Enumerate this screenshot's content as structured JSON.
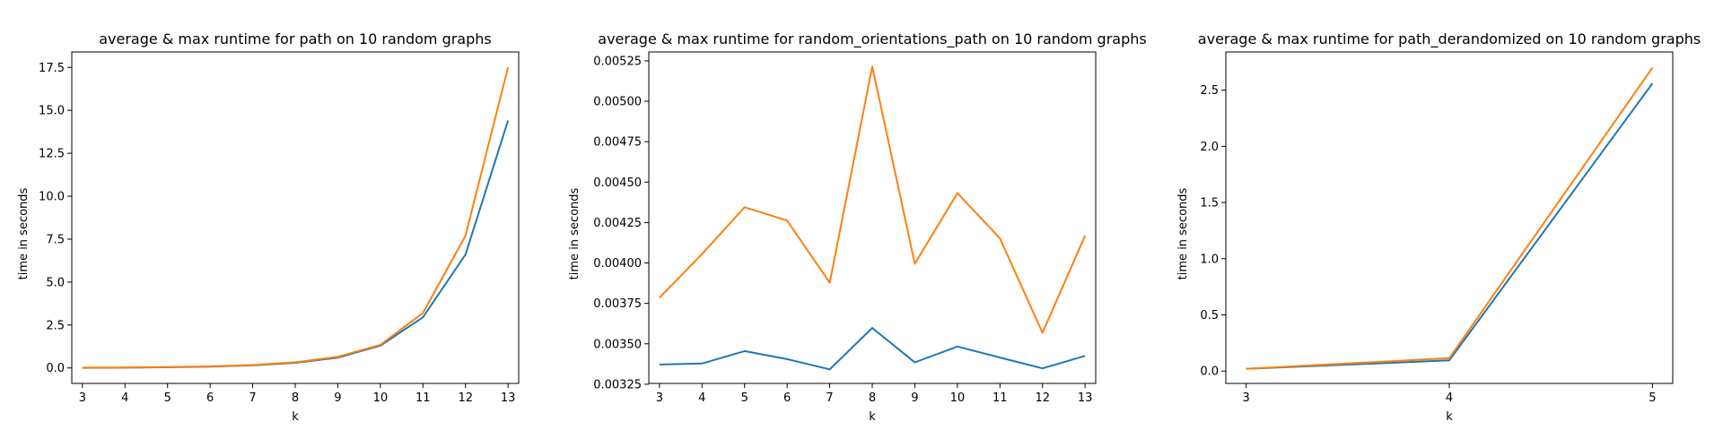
{
  "chart_data": [
    {
      "type": "line",
      "title": "average & max runtime for path on 10 random graphs",
      "xlabel": "k",
      "ylabel": "time in seconds",
      "xlim": [
        2.75,
        13.25
      ],
      "ylim": [
        -0.9,
        18.4
      ],
      "xticks": [
        3,
        4,
        5,
        6,
        7,
        8,
        9,
        10,
        11,
        12,
        13
      ],
      "xtick_labels": [
        "3",
        "4",
        "5",
        "6",
        "7",
        "8",
        "9",
        "10",
        "11",
        "12",
        "13"
      ],
      "yticks": [
        0.0,
        2.5,
        5.0,
        7.5,
        10.0,
        12.5,
        15.0,
        17.5
      ],
      "ytick_labels": [
        "0.0",
        "2.5",
        "5.0",
        "7.5",
        "10.0",
        "12.5",
        "15.0",
        "17.5"
      ],
      "x": [
        3,
        4,
        5,
        6,
        7,
        8,
        9,
        10,
        11,
        12,
        13
      ],
      "series": [
        {
          "color": "#1f77b4",
          "values": [
            0.01,
            0.02,
            0.04,
            0.08,
            0.15,
            0.3,
            0.6,
            1.3,
            2.95,
            6.6,
            14.4
          ]
        },
        {
          "color": "#ff7f0e",
          "values": [
            0.02,
            0.03,
            0.05,
            0.09,
            0.17,
            0.33,
            0.65,
            1.35,
            3.2,
            7.7,
            17.5
          ]
        }
      ],
      "grid": false
    },
    {
      "type": "line",
      "title": "average & max runtime for random_orientations_path on 10 random graphs",
      "xlabel": "k",
      "ylabel": "time in seconds",
      "xlim": [
        2.75,
        13.25
      ],
      "ylim": [
        0.003255,
        0.005305
      ],
      "xticks": [
        3,
        4,
        5,
        6,
        7,
        8,
        9,
        10,
        11,
        12,
        13
      ],
      "xtick_labels": [
        "3",
        "4",
        "5",
        "6",
        "7",
        "8",
        "9",
        "10",
        "11",
        "12",
        "13"
      ],
      "yticks": [
        0.00325,
        0.0035,
        0.00375,
        0.004,
        0.00425,
        0.0045,
        0.00475,
        0.005,
        0.00525
      ],
      "ytick_labels": [
        "0.00325",
        "0.00350",
        "0.00375",
        "0.00400",
        "0.00425",
        "0.00450",
        "0.00475",
        "0.00500",
        "0.00525"
      ],
      "x": [
        3,
        4,
        5,
        6,
        7,
        8,
        9,
        10,
        11,
        12,
        13
      ],
      "series": [
        {
          "color": "#1f77b4",
          "values": [
            0.003372,
            0.003378,
            0.003455,
            0.003405,
            0.003342,
            0.003598,
            0.003385,
            0.003483,
            0.003415,
            0.003348,
            0.003425
          ]
        },
        {
          "color": "#ff7f0e",
          "values": [
            0.003785,
            0.004055,
            0.004345,
            0.004262,
            0.003878,
            0.005215,
            0.003995,
            0.004432,
            0.004152,
            0.003568,
            0.004168
          ]
        }
      ],
      "grid": false
    },
    {
      "type": "line",
      "title": "average & max runtime for path_derandomized on 10 random graphs",
      "xlabel": "k",
      "ylabel": "time in seconds",
      "xlim": [
        2.9,
        5.1
      ],
      "ylim": [
        -0.11,
        2.84
      ],
      "xticks": [
        3,
        4,
        5
      ],
      "xtick_labels": [
        "3",
        "4",
        "5"
      ],
      "yticks": [
        0.0,
        0.5,
        1.0,
        1.5,
        2.0,
        2.5
      ],
      "ytick_labels": [
        "0.0",
        "0.5",
        "1.0",
        "1.5",
        "2.0",
        "2.5"
      ],
      "x": [
        3,
        4,
        5
      ],
      "series": [
        {
          "color": "#1f77b4",
          "values": [
            0.02,
            0.095,
            2.56
          ]
        },
        {
          "color": "#ff7f0e",
          "values": [
            0.02,
            0.115,
            2.7
          ]
        }
      ],
      "grid": false
    }
  ]
}
